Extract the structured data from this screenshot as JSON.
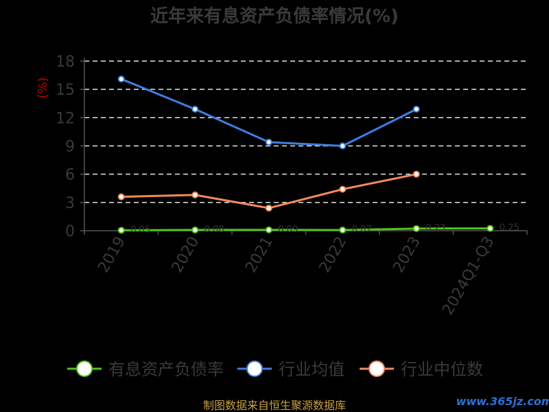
{
  "chart_data": {
    "type": "line",
    "title": "近年来有息资产负债率情况(%)",
    "ylabel": "(%)",
    "ylim": [
      0,
      18
    ],
    "yticks": [
      0,
      3,
      6,
      9,
      12,
      15,
      18
    ],
    "categories": [
      "2019",
      "2020",
      "2021",
      "2022",
      "2023",
      "2024Q1-Q3"
    ],
    "grid": true,
    "legend_position": "bottom",
    "series": [
      {
        "name": "有息资产负债率",
        "color": "#52c41a",
        "values": [
          0.05,
          0.08,
          0.09,
          0.07,
          0.23,
          0.25
        ]
      },
      {
        "name": "行业均值",
        "color": "#3f7fe0",
        "values": [
          16.1,
          12.9,
          9.4,
          9.0,
          12.9,
          null
        ]
      },
      {
        "name": "行业中位数",
        "color": "#f28a5c",
        "values": [
          3.6,
          3.8,
          2.4,
          4.4,
          6.0,
          null
        ]
      }
    ]
  },
  "source_text": "制图数据来自恒生聚源数据库",
  "watermark_text": "www.365jz.com"
}
